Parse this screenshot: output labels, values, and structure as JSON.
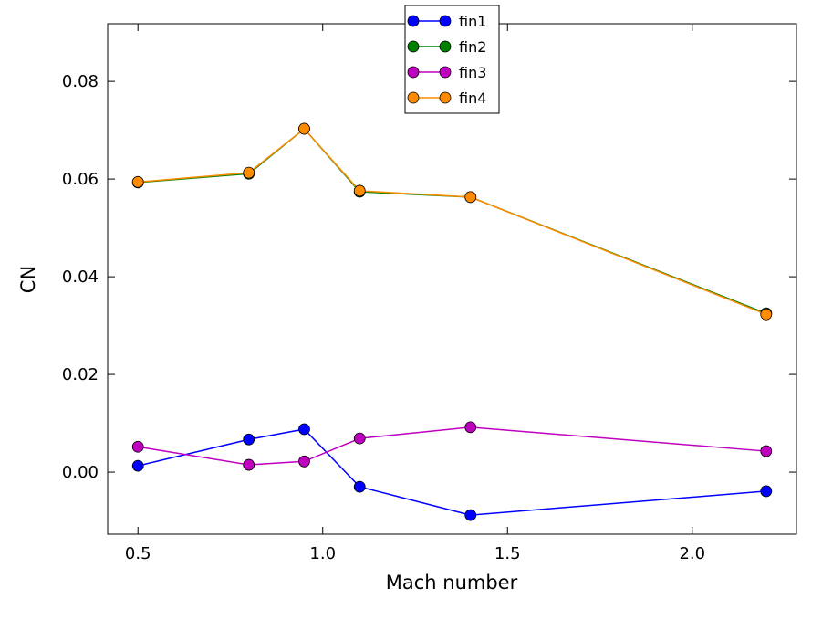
{
  "chart_data": {
    "type": "line",
    "title": "",
    "xlabel": "Mach number",
    "ylabel": "CN",
    "xlim": [
      0.418,
      2.282
    ],
    "ylim": [
      -0.0127,
      0.0918
    ],
    "xticks": [
      0.5,
      1.0,
      1.5,
      2.0
    ],
    "xtick_labels": [
      "0.5",
      "1.0",
      "1.5",
      "2.0"
    ],
    "yticks": [
      0.0,
      0.02,
      0.04,
      0.06,
      0.08
    ],
    "ytick_labels": [
      "0.00",
      "0.02",
      "0.04",
      "0.06",
      "0.08"
    ],
    "grid": false,
    "legend_position": "top-center",
    "x": [
      0.5,
      0.8,
      0.95,
      1.1,
      1.4,
      2.2
    ],
    "series": [
      {
        "name": "fin1",
        "color": "#0000ff",
        "values": [
          0.0013,
          0.0067,
          0.0088,
          -0.003,
          -0.0088,
          -0.0039
        ]
      },
      {
        "name": "fin2",
        "color": "#008000",
        "values": [
          0.0593,
          0.0611,
          0.0703,
          0.0574,
          0.0563,
          0.0325
        ]
      },
      {
        "name": "fin3",
        "color": "#bf00bf",
        "values": [
          0.0052,
          0.0015,
          0.0022,
          0.0069,
          0.0092,
          0.0043
        ]
      },
      {
        "name": "fin4",
        "color": "#ff8c00",
        "values": [
          0.0594,
          0.0613,
          0.0703,
          0.0576,
          0.0563,
          0.0323
        ]
      }
    ]
  }
}
